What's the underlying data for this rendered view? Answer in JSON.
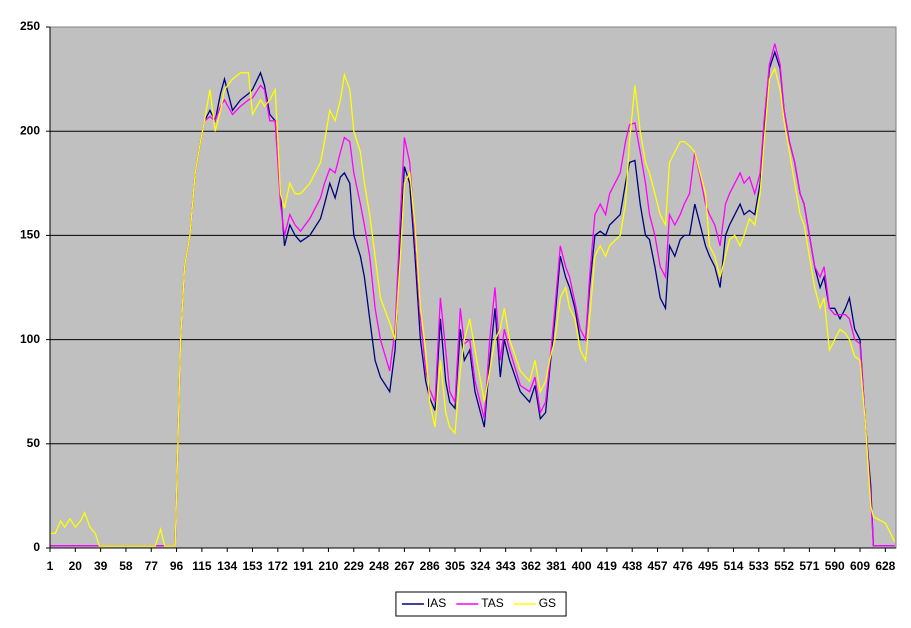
{
  "chart_data": {
    "type": "line",
    "x": [
      1,
      5,
      9,
      12,
      16,
      20,
      24,
      27,
      31,
      35,
      38,
      50,
      60,
      70,
      80,
      84,
      87,
      93,
      95,
      99,
      102,
      106,
      110,
      114,
      117,
      121,
      125,
      129,
      132,
      138,
      144,
      150,
      153,
      159,
      162,
      166,
      170,
      174,
      177,
      181,
      185,
      189,
      196,
      204,
      207,
      211,
      215,
      219,
      222,
      226,
      229,
      234,
      237,
      241,
      245,
      249,
      256,
      260,
      264,
      267,
      271,
      275,
      279,
      283,
      286,
      290,
      294,
      298,
      301,
      305,
      309,
      312,
      316,
      320,
      327,
      331,
      335,
      339,
      342,
      346,
      354,
      361,
      365,
      369,
      373,
      376,
      380,
      384,
      388,
      391,
      395,
      399,
      403,
      406,
      410,
      414,
      418,
      421,
      429,
      433,
      436,
      440,
      444,
      448,
      451,
      455,
      459,
      463,
      466,
      470,
      474,
      477,
      481,
      485,
      489,
      493,
      496,
      500,
      504,
      508,
      511,
      515,
      519,
      522,
      526,
      530,
      534,
      537,
      541,
      545,
      549,
      552,
      556,
      560,
      564,
      567,
      571,
      575,
      579,
      582,
      586,
      590,
      594,
      598,
      601,
      605,
      609,
      613,
      617,
      619,
      628,
      635
    ],
    "series": [
      {
        "name": "IAS",
        "color": "#000080",
        "values": [
          1,
          1,
          1,
          1,
          1,
          1,
          1,
          1,
          1,
          1,
          1,
          1,
          1,
          1,
          1,
          1,
          1,
          1,
          1,
          100,
          135,
          150,
          180,
          195,
          205,
          210,
          205,
          218,
          225,
          210,
          215,
          218,
          220,
          228,
          222,
          208,
          205,
          170,
          145,
          155,
          150,
          147,
          150,
          158,
          165,
          175,
          168,
          178,
          180,
          175,
          150,
          140,
          130,
          110,
          90,
          82,
          75,
          95,
          150,
          183,
          175,
          140,
          100,
          80,
          72,
          66,
          110,
          80,
          70,
          67,
          105,
          90,
          95,
          75,
          58,
          90,
          115,
          82,
          100,
          90,
          75,
          70,
          78,
          62,
          65,
          85,
          110,
          140,
          130,
          125,
          115,
          100,
          100,
          125,
          150,
          152,
          150,
          155,
          160,
          175,
          185,
          186,
          165,
          150,
          148,
          135,
          120,
          115,
          145,
          140,
          148,
          150,
          150,
          165,
          155,
          145,
          140,
          135,
          125,
          150,
          155,
          160,
          165,
          160,
          162,
          160,
          175,
          200,
          230,
          238,
          230,
          210,
          195,
          185,
          170,
          165,
          150,
          135,
          125,
          130,
          115,
          115,
          110,
          115,
          120,
          105,
          100,
          60,
          30,
          1,
          1,
          1
        ]
      },
      {
        "name": "TAS",
        "color": "#ff00ff",
        "values": [
          1,
          1,
          1,
          1,
          1,
          1,
          1,
          1,
          1,
          1,
          1,
          1,
          1,
          1,
          1,
          1,
          1,
          1,
          1,
          100,
          135,
          150,
          180,
          195,
          205,
          207,
          205,
          212,
          215,
          208,
          212,
          215,
          216,
          222,
          220,
          205,
          205,
          165,
          150,
          160,
          155,
          152,
          158,
          168,
          175,
          182,
          180,
          190,
          197,
          195,
          180,
          165,
          155,
          140,
          115,
          100,
          85,
          105,
          160,
          197,
          185,
          150,
          110,
          85,
          76,
          70,
          120,
          95,
          75,
          70,
          115,
          98,
          100,
          80,
          62,
          100,
          125,
          90,
          105,
          95,
          78,
          75,
          82,
          65,
          70,
          88,
          115,
          145,
          135,
          130,
          118,
          105,
          100,
          130,
          160,
          165,
          160,
          170,
          180,
          195,
          203,
          204,
          190,
          175,
          160,
          150,
          135,
          130,
          160,
          155,
          160,
          165,
          170,
          190,
          178,
          165,
          160,
          155,
          145,
          165,
          170,
          175,
          180,
          175,
          178,
          170,
          180,
          205,
          232,
          242,
          232,
          210,
          195,
          185,
          170,
          165,
          150,
          135,
          130,
          135,
          115,
          112,
          112,
          112,
          110,
          100,
          98,
          60,
          25,
          1,
          1,
          1
        ]
      },
      {
        "name": "GS",
        "color": "#ffff00",
        "values": [
          7,
          7,
          13,
          10,
          14,
          10,
          13,
          17,
          10,
          7,
          1,
          1,
          1,
          1,
          1,
          9,
          1,
          1,
          1,
          100,
          135,
          150,
          180,
          195,
          205,
          220,
          200,
          210,
          220,
          225,
          228,
          228,
          208,
          215,
          212,
          215,
          220,
          170,
          163,
          175,
          170,
          170,
          175,
          185,
          195,
          210,
          205,
          215,
          227,
          220,
          200,
          190,
          175,
          160,
          140,
          120,
          108,
          100,
          140,
          175,
          180,
          155,
          115,
          95,
          70,
          58,
          90,
          65,
          58,
          55,
          85,
          100,
          110,
          95,
          70,
          85,
          100,
          105,
          115,
          100,
          85,
          80,
          90,
          75,
          80,
          90,
          100,
          120,
          125,
          115,
          110,
          95,
          90,
          110,
          140,
          145,
          140,
          145,
          150,
          165,
          195,
          222,
          200,
          185,
          180,
          170,
          160,
          155,
          185,
          190,
          195,
          195,
          193,
          190,
          180,
          170,
          145,
          140,
          130,
          140,
          148,
          150,
          145,
          150,
          158,
          155,
          170,
          195,
          225,
          230,
          220,
          205,
          190,
          175,
          160,
          155,
          140,
          125,
          115,
          120,
          95,
          100,
          105,
          103,
          100,
          92,
          90,
          60,
          20,
          15,
          12,
          3
        ]
      }
    ],
    "xlim": [
      1,
      636
    ],
    "xticks": [
      1,
      20,
      39,
      58,
      77,
      96,
      115,
      134,
      153,
      172,
      191,
      210,
      229,
      248,
      267,
      286,
      305,
      324,
      343,
      362,
      381,
      400,
      419,
      438,
      457,
      476,
      495,
      514,
      533,
      552,
      571,
      590,
      609,
      628
    ],
    "ylim": [
      0,
      250
    ],
    "yticks": [
      0,
      50,
      100,
      150,
      200,
      250
    ],
    "grid": true,
    "plot_background": "#c0c0c0",
    "legend": "bottom"
  }
}
